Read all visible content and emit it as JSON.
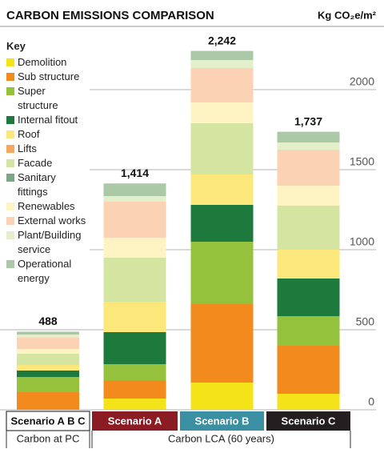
{
  "chart_data": {
    "type": "stacked_bar",
    "title": "CARBON EMISSIONS COMPARISON",
    "y_axis_label": "Kg CO₂e/m²",
    "legend_title": "Key",
    "categories": [
      "Scenario A B C",
      "Scenario A",
      "Scenario B",
      "Scenario C"
    ],
    "category_colors": [
      "#ffffff",
      "#8b1c24",
      "#3a8fa3",
      "#231f20"
    ],
    "category_text_colors": [
      "#111111",
      "#ffffff",
      "#ffffff",
      "#ffffff"
    ],
    "groups": [
      {
        "label": "Carbon at PC",
        "span": [
          0,
          0
        ]
      },
      {
        "label": "Carbon LCA (60 years)",
        "span": [
          1,
          3
        ]
      }
    ],
    "series": [
      {
        "name": "Demolition",
        "color": "#f5e31a",
        "values": [
          0,
          70,
          170,
          100
        ]
      },
      {
        "name": "Sub structure",
        "color": "#f28a1e",
        "values": [
          110,
          115,
          490,
          300
        ]
      },
      {
        "name": "Super structure",
        "color": "#95c23d",
        "values": [
          95,
          100,
          390,
          185
        ]
      },
      {
        "name": "Internal fitout",
        "color": "#1e7a3c",
        "values": [
          40,
          200,
          230,
          235
        ]
      },
      {
        "name": "Roof",
        "color": "#fbe77a",
        "values": [
          35,
          190,
          190,
          180
        ]
      },
      {
        "name": "Lifts",
        "color": "#f6a860",
        "values": [
          0,
          0,
          0,
          0
        ]
      },
      {
        "name": "Facade",
        "color": "#d4e5a2",
        "values": [
          70,
          275,
          320,
          275
        ]
      },
      {
        "name": "Sanitary fittings",
        "color": "#7aa886",
        "values": [
          0,
          0,
          0,
          0
        ]
      },
      {
        "name": "Renewables",
        "color": "#fdf3c3",
        "values": [
          30,
          125,
          130,
          125
        ]
      },
      {
        "name": "External works",
        "color": "#fbd2b4",
        "values": [
          70,
          225,
          215,
          225
        ]
      },
      {
        "name": "Plant/Building service",
        "color": "#e3eeca",
        "values": [
          20,
          35,
          50,
          45
        ]
      },
      {
        "name": "Operational energy",
        "color": "#abc9a6",
        "values": [
          18,
          79,
          57,
          67
        ]
      }
    ],
    "totals": [
      488,
      1414,
      2242,
      1737
    ],
    "total_labels": [
      "488",
      "1,414",
      "2,242",
      "1,737"
    ],
    "ylim": [
      0,
      2350
    ],
    "yticks": [
      0,
      500,
      1000,
      1500,
      2000
    ],
    "grid": true
  }
}
